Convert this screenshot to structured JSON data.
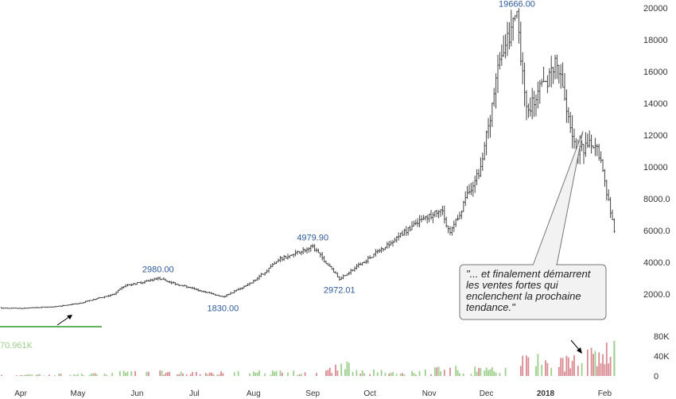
{
  "chart_data": {
    "type": "ohlc",
    "ylim": [
      0,
      20000
    ],
    "y_ticks": [
      {
        "value": 20000,
        "label": "20000"
      },
      {
        "value": 18000,
        "label": "18000"
      },
      {
        "value": 16000,
        "label": "16000"
      },
      {
        "value": 14000,
        "label": "14000"
      },
      {
        "value": 12000,
        "label": "12000"
      },
      {
        "value": 10000,
        "label": "10000"
      },
      {
        "value": 8000,
        "label": "8000.0"
      },
      {
        "value": 6000,
        "label": "6000.0"
      },
      {
        "value": 4000,
        "label": "4000.0"
      },
      {
        "value": 2000,
        "label": "2000.0"
      }
    ],
    "x_ticks": [
      {
        "date": "2017-04-01",
        "label": "Apr",
        "bold": false
      },
      {
        "date": "2017-05-01",
        "label": "May",
        "bold": false
      },
      {
        "date": "2017-06-01",
        "label": "Jun",
        "bold": false
      },
      {
        "date": "2017-07-01",
        "label": "Jul",
        "bold": false
      },
      {
        "date": "2017-08-01",
        "label": "Aug",
        "bold": false
      },
      {
        "date": "2017-09-01",
        "label": "Sep",
        "bold": false
      },
      {
        "date": "2017-10-01",
        "label": "Oct",
        "bold": false
      },
      {
        "date": "2017-11-01",
        "label": "Nov",
        "bold": false
      },
      {
        "date": "2017-12-01",
        "label": "Dec",
        "bold": false
      },
      {
        "date": "2018-01-01",
        "label": "2018",
        "bold": true
      },
      {
        "date": "2018-02-01",
        "label": "Feb",
        "bold": false
      }
    ],
    "price_path": [
      {
        "date": "2017-03-10",
        "price": 1150
      },
      {
        "date": "2017-04-01",
        "price": 1100
      },
      {
        "date": "2017-04-20",
        "price": 1220
      },
      {
        "date": "2017-05-01",
        "price": 1400
      },
      {
        "date": "2017-05-20",
        "price": 2000
      },
      {
        "date": "2017-05-25",
        "price": 2500
      },
      {
        "date": "2017-06-12",
        "price": 2980
      },
      {
        "date": "2017-06-25",
        "price": 2500
      },
      {
        "date": "2017-07-16",
        "price": 1830
      },
      {
        "date": "2017-07-31",
        "price": 2700
      },
      {
        "date": "2017-08-15",
        "price": 4200
      },
      {
        "date": "2017-09-01",
        "price": 4979.9
      },
      {
        "date": "2017-09-15",
        "price": 2972.01
      },
      {
        "date": "2017-10-01",
        "price": 4300
      },
      {
        "date": "2017-10-20",
        "price": 6000
      },
      {
        "date": "2017-11-07",
        "price": 7400
      },
      {
        "date": "2017-11-12",
        "price": 5800
      },
      {
        "date": "2017-11-28",
        "price": 10000
      },
      {
        "date": "2017-12-07",
        "price": 16000
      },
      {
        "date": "2017-12-17",
        "price": 19666
      },
      {
        "date": "2017-12-22",
        "price": 13500
      },
      {
        "date": "2018-01-07",
        "price": 16500
      },
      {
        "date": "2018-01-17",
        "price": 11000
      },
      {
        "date": "2018-01-28",
        "price": 11500
      },
      {
        "date": "2018-02-06",
        "price": 6000
      }
    ],
    "volume": {
      "ylim": [
        0,
        80000
      ],
      "ticks": [
        {
          "value": 80000,
          "label": "80K"
        },
        {
          "value": 40000,
          "label": "40K"
        },
        {
          "value": 0,
          "label": "0"
        }
      ],
      "path": [
        {
          "date": "2017-03-10",
          "value": 2000
        },
        {
          "date": "2017-05-01",
          "value": 5000
        },
        {
          "date": "2017-06-01",
          "value": 12000
        },
        {
          "date": "2017-07-01",
          "value": 8000
        },
        {
          "date": "2017-08-01",
          "value": 12000
        },
        {
          "date": "2017-09-01",
          "value": 10000
        },
        {
          "date": "2017-09-15",
          "value": 30000
        },
        {
          "date": "2017-10-15",
          "value": 6000
        },
        {
          "date": "2017-11-12",
          "value": 20000
        },
        {
          "date": "2017-12-10",
          "value": 15000
        },
        {
          "date": "2017-12-22",
          "value": 45000
        },
        {
          "date": "2018-01-17",
          "value": 40000
        },
        {
          "date": "2018-02-06",
          "value": 70961
        }
      ],
      "up_color": "#9ccf8c",
      "down_color": "#d98a92"
    },
    "annotations": [
      {
        "text": "19666.00",
        "date": "2017-12-17",
        "price": 19666,
        "position": "above"
      },
      {
        "text": "2980.00",
        "date": "2017-06-12",
        "price": 2980,
        "position": "above"
      },
      {
        "text": "1830.00",
        "date": "2017-07-16",
        "price": 1830,
        "position": "below"
      },
      {
        "text": "4979.90",
        "date": "2017-09-01",
        "price": 4979.9,
        "position": "above"
      },
      {
        "text": "2972.01",
        "date": "2017-09-15",
        "price": 2972.01,
        "position": "below"
      }
    ],
    "volume_label": "70.961K",
    "callout_text": "\"... et finalement démarrent les ventes fortes qui enclenchent la prochaine tendance.\"",
    "colors": {
      "bars": "#444444",
      "annotation": "#2e5a9a",
      "trendline": "#2a9a2a"
    }
  }
}
